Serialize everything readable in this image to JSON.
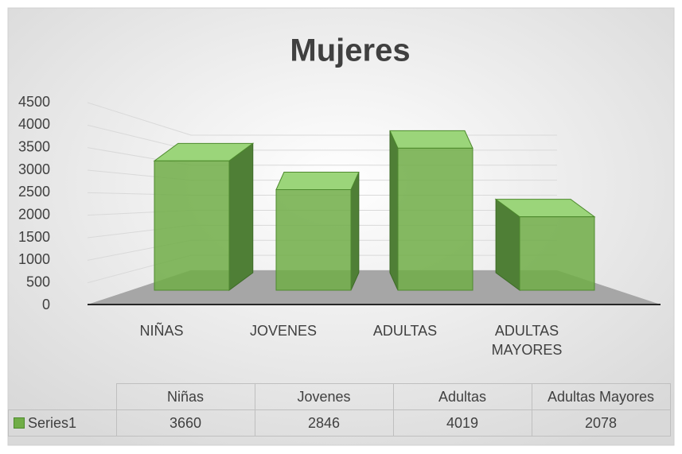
{
  "chart_data": {
    "type": "bar",
    "title": "Mujeres",
    "categories": [
      "NIÑAS",
      "JOVENES",
      "ADULTAS",
      "ADULTAS MAYORES"
    ],
    "series": [
      {
        "name": "Series1",
        "color": "#70ad47",
        "values": [
          3660,
          2846,
          4019,
          2078
        ]
      }
    ],
    "ylim": [
      0,
      4500
    ],
    "yticks": [
      0,
      500,
      1000,
      1500,
      2000,
      2500,
      3000,
      3500,
      4000,
      4500
    ],
    "grid": true,
    "data_table": {
      "columns": [
        "Niñas",
        "Jovenes",
        "Adultas",
        "Adultas Mayores"
      ]
    }
  }
}
